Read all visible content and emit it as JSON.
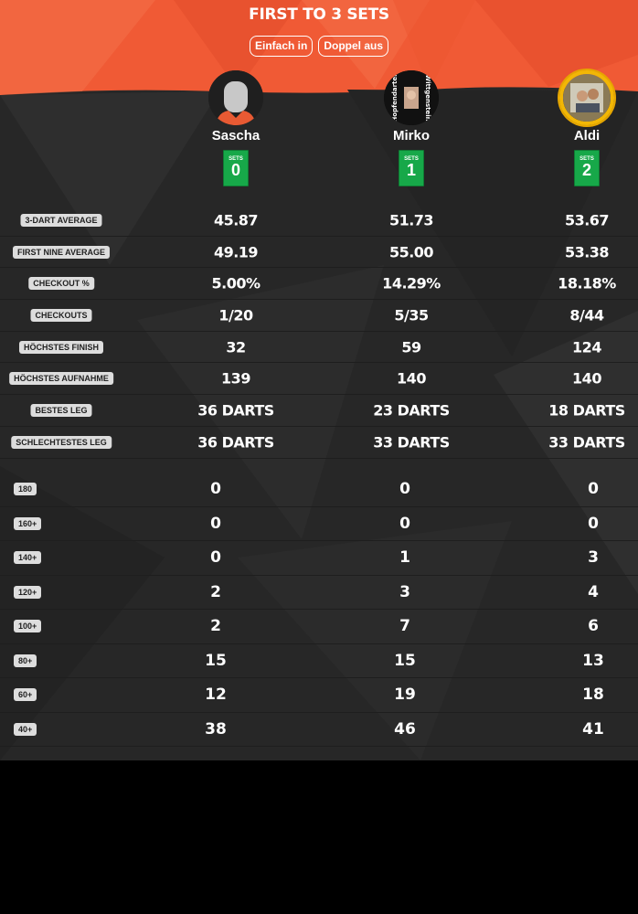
{
  "header": {
    "title": "FIRST TO 3 SETS",
    "modes": [
      "Einfach in",
      "Doppel aus"
    ]
  },
  "colors": {
    "header": "#f05a35",
    "sets_badge": "#17a849",
    "background": "#272727",
    "crown_ring": "#f2b705"
  },
  "players": [
    {
      "name": "Sascha",
      "sets_label": "SETS",
      "sets": "0",
      "avatar": "default-avatar-icon"
    },
    {
      "name": "Mirko",
      "sets_label": "SETS",
      "sets": "1",
      "avatar": "photo-avatar",
      "avatar_text_left": "Hopfendarter",
      "avatar_text_right": "Wittgenstein"
    },
    {
      "name": "Aldi",
      "sets_label": "SETS",
      "sets": "2",
      "avatar": "photo-avatar-gold-ring"
    }
  ],
  "stats": [
    {
      "label": "3-DART AVERAGE",
      "values": [
        "45.87",
        "51.73",
        "53.67"
      ]
    },
    {
      "label": "FIRST NINE AVERAGE",
      "values": [
        "49.19",
        "55.00",
        "53.38"
      ]
    },
    {
      "label": "CHECKOUT %",
      "values": [
        "5.00%",
        "14.29%",
        "18.18%"
      ]
    },
    {
      "label": "CHECKOUTS",
      "values": [
        "1/20",
        "5/35",
        "8/44"
      ]
    },
    {
      "label": "HÖCHSTES FINISH",
      "values": [
        "32",
        "59",
        "124"
      ]
    },
    {
      "label": "HÖCHSTES AUFNAHME",
      "values": [
        "139",
        "140",
        "140"
      ]
    },
    {
      "label": "BESTES LEG",
      "values": [
        "36 DARTS",
        "23 DARTS",
        "18 DARTS"
      ]
    },
    {
      "label": "SCHLECHTESTES LEG",
      "values": [
        "36 DARTS",
        "33 DARTS",
        "33 DARTS"
      ]
    }
  ],
  "scores": [
    {
      "label": "180",
      "values": [
        "0",
        "0",
        "0"
      ]
    },
    {
      "label": "160+",
      "values": [
        "0",
        "0",
        "0"
      ]
    },
    {
      "label": "140+",
      "values": [
        "0",
        "1",
        "3"
      ]
    },
    {
      "label": "120+",
      "values": [
        "2",
        "3",
        "4"
      ]
    },
    {
      "label": "100+",
      "values": [
        "2",
        "7",
        "6"
      ]
    },
    {
      "label": "80+",
      "values": [
        "15",
        "15",
        "13"
      ]
    },
    {
      "label": "60+",
      "values": [
        "12",
        "19",
        "18"
      ]
    },
    {
      "label": "40+",
      "values": [
        "38",
        "46",
        "41"
      ]
    }
  ]
}
